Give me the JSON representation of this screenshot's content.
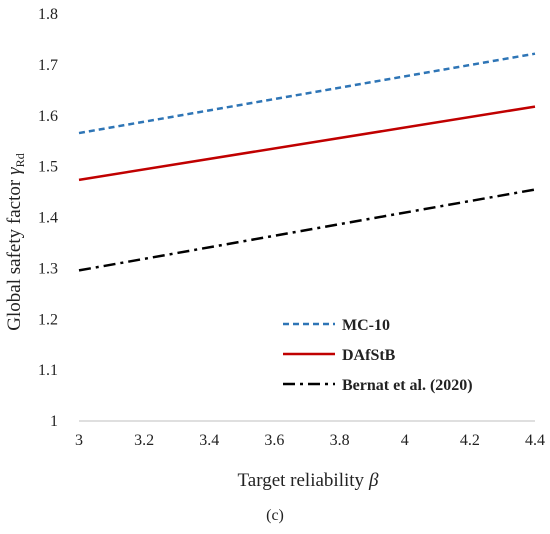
{
  "chart_data": {
    "type": "line",
    "xlabel": "Target reliability",
    "xlabel_symbol": "β",
    "ylabel": "Global safety factor",
    "ylabel_symbol": "γ",
    "ylabel_subscript": "Rd",
    "panel_label": "(c)",
    "xlim": [
      3,
      4.4
    ],
    "ylim": [
      1,
      1.8
    ],
    "x_ticks": [
      "3",
      "3.2",
      "3.4",
      "3.6",
      "3.8",
      "4",
      "4.2",
      "4.4"
    ],
    "y_ticks": [
      "1",
      "1.1",
      "1.2",
      "1.3",
      "1.4",
      "1.5",
      "1.6",
      "1.7",
      "1.8"
    ],
    "grid": false,
    "legend_position": "lower-left",
    "series": [
      {
        "name": "MC-10",
        "x": [
          3,
          4.4
        ],
        "values": [
          1.566,
          1.722
        ],
        "color": "#2e75b6",
        "dash": "dashed"
      },
      {
        "name": "DAfStB",
        "x": [
          3,
          4.4
        ],
        "values": [
          1.474,
          1.618
        ],
        "color": "#c00000",
        "dash": "solid"
      },
      {
        "name": "Bernat et al. (2020)",
        "x": [
          3,
          4.4
        ],
        "values": [
          1.296,
          1.455
        ],
        "color": "#000000",
        "dash": "dash-dot"
      }
    ]
  }
}
